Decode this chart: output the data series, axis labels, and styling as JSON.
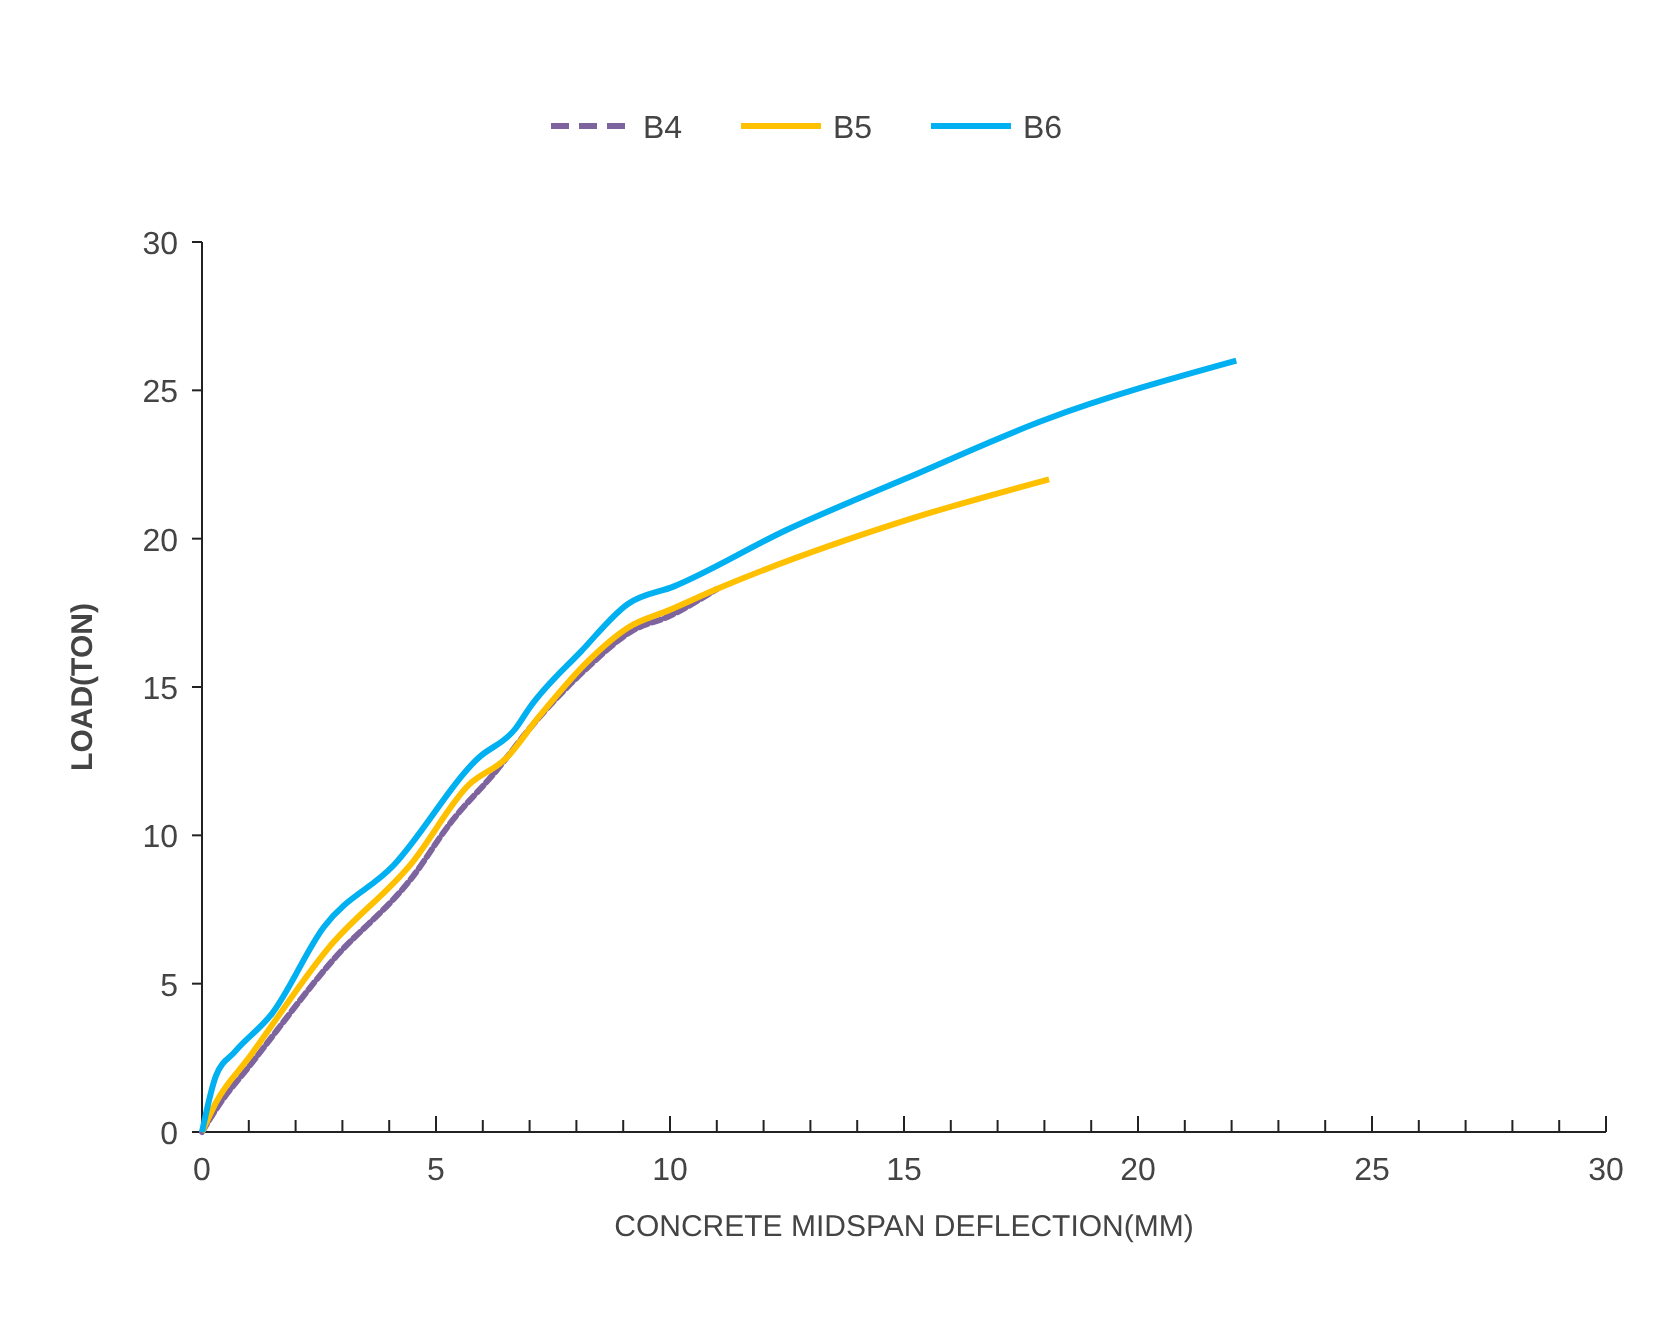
{
  "chart_data": {
    "type": "line",
    "xlabel": "CONCRETE MIDSPAN DEFLECTION(MM)",
    "ylabel": "LOAD(TON)",
    "xlim": [
      0,
      30
    ],
    "ylim": [
      0,
      30
    ],
    "xticks": [
      0,
      {
        "value": 1,
        "label": null
      },
      {
        "value": 2,
        "label": null
      },
      {
        "value": 3,
        "label": null
      },
      {
        "value": 4,
        "label": null
      },
      5,
      {
        "value": 6,
        "label": null
      },
      {
        "value": 7,
        "label": null
      },
      {
        "value": 8,
        "label": null
      },
      {
        "value": 9,
        "label": null
      },
      10,
      {
        "value": 11,
        "label": null
      },
      {
        "value": 12,
        "label": null
      },
      {
        "value": 13,
        "label": null
      },
      {
        "value": 14,
        "label": null
      },
      15,
      {
        "value": 16,
        "label": null
      },
      {
        "value": 17,
        "label": null
      },
      {
        "value": 18,
        "label": null
      },
      {
        "value": 19,
        "label": null
      },
      20,
      {
        "value": 21,
        "label": null
      },
      {
        "value": 22,
        "label": null
      },
      {
        "value": 23,
        "label": null
      },
      {
        "value": 24,
        "label": null
      },
      25,
      {
        "value": 26,
        "label": null
      },
      {
        "value": 27,
        "label": null
      },
      {
        "value": 28,
        "label": null
      },
      {
        "value": 29,
        "label": null
      },
      30
    ],
    "yticks": [
      0,
      5,
      10,
      15,
      20,
      25,
      30
    ],
    "legend": "top",
    "grid": false,
    "marker": "none",
    "series": [
      {
        "name": "B4",
        "color": "#7e649e",
        "line_style": "dashed",
        "x": [
          0,
          0.4,
          1,
          2.8,
          4.5,
          5.3,
          6.3,
          7,
          8.2,
          9.2,
          10,
          11
        ],
        "values": [
          0,
          1,
          2.2,
          5.8,
          8.6,
          10.4,
          12.2,
          13.6,
          15.6,
          16.9,
          17.4,
          18.3
        ]
      },
      {
        "name": "B5",
        "color": "#ffc000",
        "line_style": "solid",
        "x": [
          0,
          0.3,
          1,
          2.7,
          4.5,
          5.7,
          6.5,
          7.2,
          8.2,
          9.1,
          10,
          11,
          15,
          18.1
        ],
        "values": [
          0,
          1,
          2.5,
          6.2,
          9.1,
          11.7,
          12.6,
          14,
          15.8,
          17,
          17.6,
          18.3,
          20.6,
          22
        ]
      },
      {
        "name": "B6",
        "color": "#00b0f0",
        "line_style": "solid",
        "x": [
          0,
          0.3,
          0.7,
          1.5,
          2.6,
          4.1,
          5.9,
          6.7,
          7,
          8.1,
          9.1,
          10.1,
          12.5,
          15,
          18,
          22.1
        ],
        "values": [
          0,
          1.9,
          2.7,
          4,
          6.9,
          9,
          12.6,
          13.6,
          14.3,
          16.2,
          17.8,
          18.4,
          20.3,
          22,
          24,
          26
        ]
      }
    ]
  }
}
